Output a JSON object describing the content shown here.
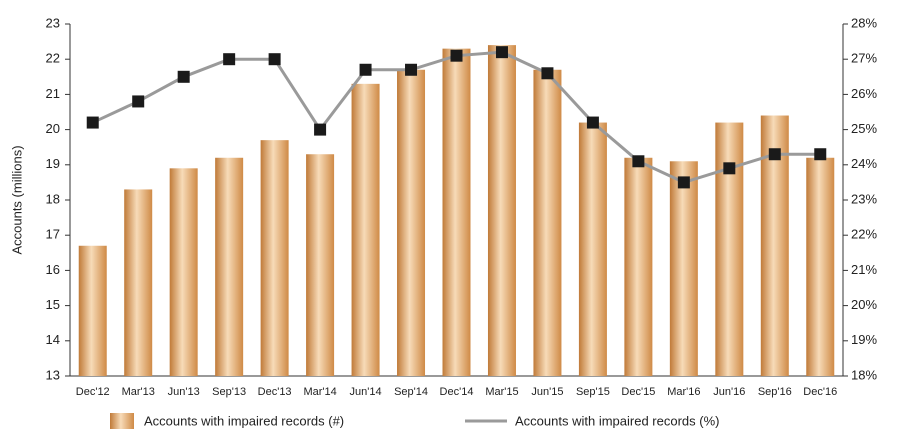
{
  "chart_data": {
    "type": "bar_line",
    "y_label": "Accounts (millions)",
    "categories": [
      "Dec'12",
      "Mar'13",
      "Jun'13",
      "Sep'13",
      "Dec'13",
      "Mar'14",
      "Jun'14",
      "Sep'14",
      "Dec'14",
      "Mar'15",
      "Jun'15",
      "Sep'15",
      "Dec'15",
      "Mar'16",
      "Jun'16",
      "Sep'16",
      "Dec'16"
    ],
    "series": [
      {
        "name": "Accounts with impaired records (#)",
        "type": "bar",
        "color": "#d9995a",
        "values": [
          16.7,
          18.3,
          18.9,
          19.2,
          19.7,
          19.3,
          21.3,
          21.7,
          22.3,
          22.4,
          21.7,
          20.2,
          19.2,
          19.1,
          20.2,
          20.4,
          19.2
        ]
      },
      {
        "name": "Accounts with impaired records (%)",
        "type": "line",
        "axis": "y2",
        "color": "#9a9a9a",
        "values": [
          25.2,
          25.8,
          26.5,
          27.0,
          27.0,
          25.0,
          26.7,
          26.7,
          27.1,
          27.2,
          26.6,
          25.2,
          24.1,
          23.5,
          23.9,
          24.3,
          24.3
        ]
      }
    ],
    "ylim": [
      13,
      23
    ],
    "yticks": [
      13,
      14,
      15,
      16,
      17,
      18,
      19,
      20,
      21,
      22,
      23
    ],
    "y2lim": [
      18,
      28
    ],
    "y2ticks": [
      {
        "value": 18,
        "label": "18%"
      },
      {
        "value": 19,
        "label": "19%"
      },
      {
        "value": 20,
        "label": "20%"
      },
      {
        "value": 21,
        "label": "21%"
      },
      {
        "value": 22,
        "label": "22%"
      },
      {
        "value": 23,
        "label": "23%"
      },
      {
        "value": 24,
        "label": "24%"
      },
      {
        "value": 25,
        "label": "25%"
      },
      {
        "value": 26,
        "label": "26%"
      },
      {
        "value": 27,
        "label": "27%"
      },
      {
        "value": 28,
        "label": "28%"
      }
    ],
    "legend": "bottom"
  }
}
